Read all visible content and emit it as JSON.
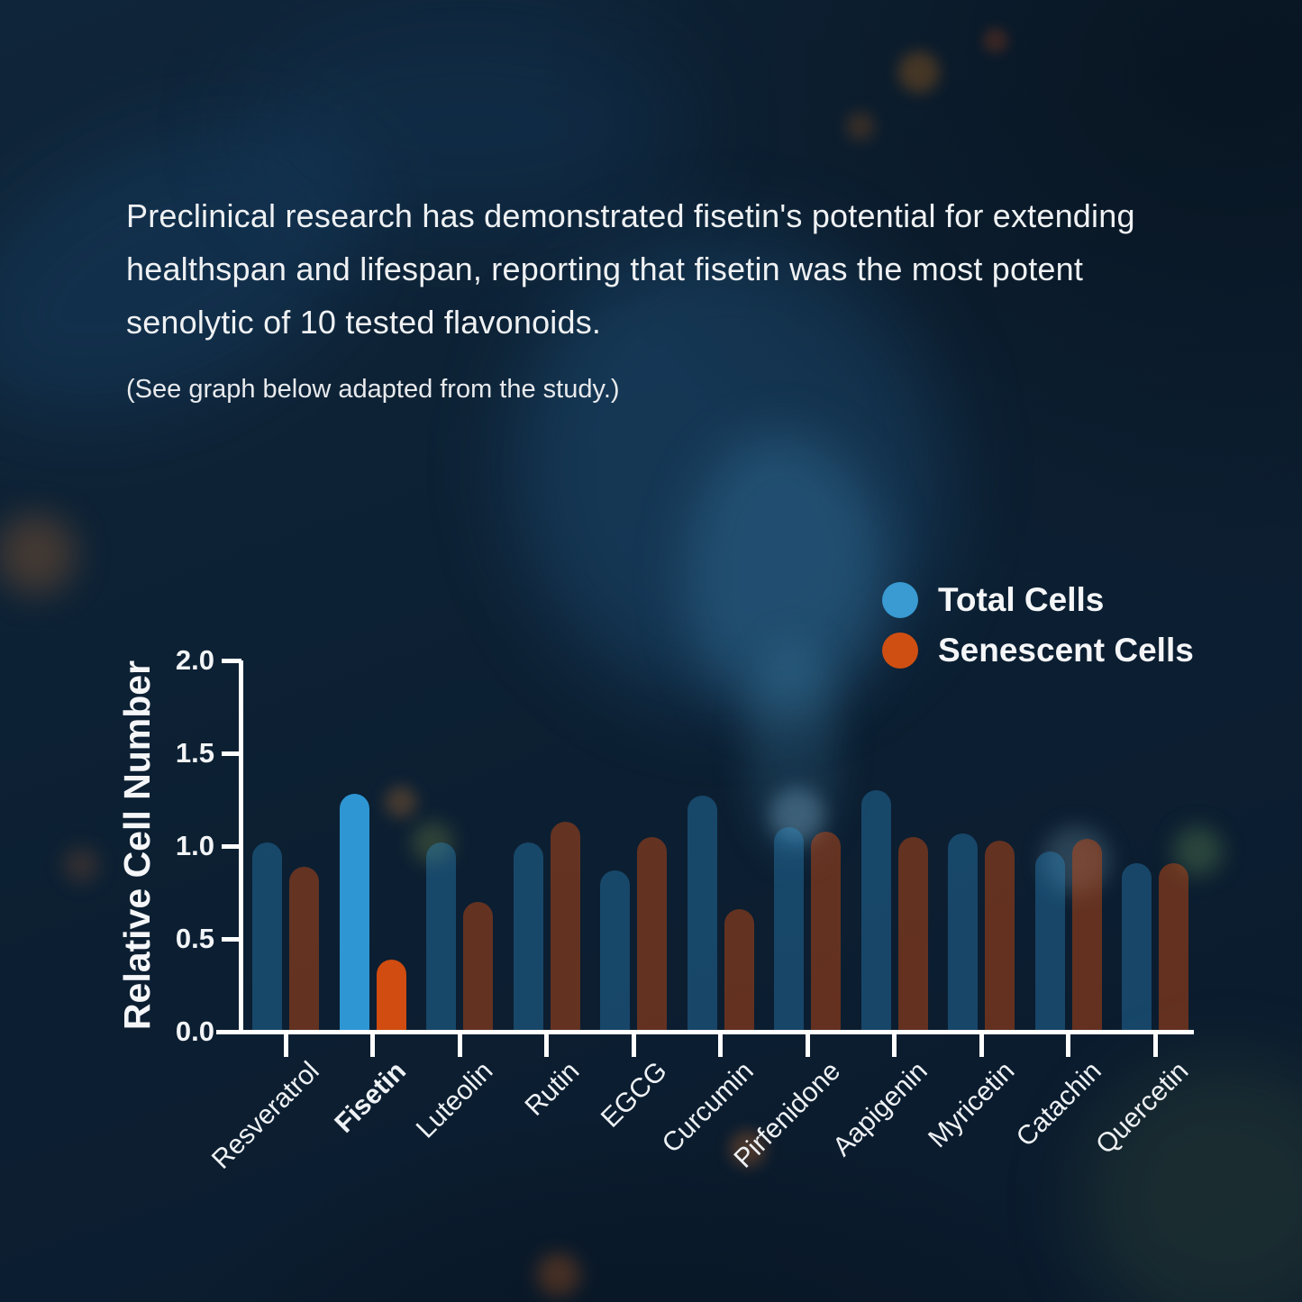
{
  "page": {
    "paragraph": "Preclinical research has demonstrated fisetin's potential for extending healthspan and lifespan, reporting that fisetin was the most potent senolytic of 10 tested flavonoids.",
    "note": "(See graph below adapted from the study.)"
  },
  "legend": [
    {
      "label": "Total Cells",
      "color": "#3a9ad2"
    },
    {
      "label": "Senescent Cells",
      "color": "#cf4f12"
    }
  ],
  "chart_data": {
    "type": "bar",
    "title": "",
    "xlabel": "",
    "ylabel": "Relative Cell Number",
    "ylim": [
      0,
      2.0
    ],
    "yticks": [
      0,
      0.5,
      1,
      1.5,
      2
    ],
    "grid": false,
    "legend_position": "top-right",
    "categories": [
      "Resveratrol",
      "Fisetin",
      "Luteolin",
      "Rutin",
      "EGCG",
      "Curcumin",
      "Pirfenidone",
      "Aapigenin",
      "Myricetin",
      "Catachin",
      "Quercetin"
    ],
    "highlight_category": "Fisetin",
    "series": [
      {
        "name": "Total Cells",
        "color": "#2e96d3",
        "values": [
          1.02,
          1.28,
          1.02,
          1.02,
          0.87,
          1.27,
          1.1,
          1.3,
          1.07,
          0.97,
          0.91
        ]
      },
      {
        "name": "Senescent Cells",
        "color": "#d04c10",
        "values": [
          0.89,
          0.39,
          0.7,
          1.13,
          1.05,
          0.66,
          1.08,
          1.05,
          1.03,
          1.04,
          0.91
        ]
      }
    ]
  }
}
